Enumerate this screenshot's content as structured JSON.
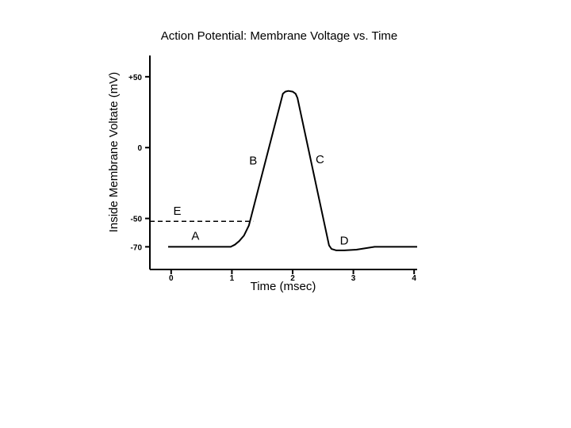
{
  "chart_data": {
    "type": "line",
    "title": "Action Potential: Membrane Voltage vs. Time",
    "xlabel": "Time (msec)",
    "ylabel": "Inside Membrane Voltate (mV)",
    "xlim": [
      -0.35,
      4.05
    ],
    "ylim": [
      -86,
      65
    ],
    "x_ticks": [
      {
        "value": 0,
        "label": "0"
      },
      {
        "value": 1,
        "label": "1"
      },
      {
        "value": 2,
        "label": "2"
      },
      {
        "value": 3,
        "label": "3"
      },
      {
        "value": 4,
        "label": "4"
      }
    ],
    "y_ticks": [
      {
        "value": 50,
        "label": "+50"
      },
      {
        "value": 0,
        "label": "0"
      },
      {
        "value": -50,
        "label": "-50"
      },
      {
        "value": -70,
        "label": "-70"
      }
    ],
    "series": [
      {
        "x": [
          -0.05,
          0.98,
          1.05,
          1.12,
          1.2,
          1.28,
          1.84,
          1.88,
          1.93,
          2.0,
          2.05,
          2.08,
          2.6,
          2.64,
          2.72,
          2.85,
          3.05,
          3.35,
          4.05
        ],
        "y": [
          -70,
          -70,
          -68.5,
          -66,
          -62,
          -55,
          38,
          39.5,
          40,
          39.5,
          38,
          35,
          -69,
          -71.5,
          -72.5,
          -72.5,
          -72,
          -70,
          -70
        ]
      }
    ],
    "threshold": {
      "value": -52,
      "x_start": -0.35,
      "x_end": 1.35
    },
    "annotations": [
      {
        "text": "A",
        "x": 0.4,
        "y": -65
      },
      {
        "text": "B",
        "x": 1.35,
        "y": -12
      },
      {
        "text": "C",
        "x": 2.45,
        "y": -11
      },
      {
        "text": "D",
        "x": 2.85,
        "y": -68.5
      },
      {
        "text": "E",
        "x": 0.1,
        "y": -47.5
      }
    ],
    "grid": false
  }
}
